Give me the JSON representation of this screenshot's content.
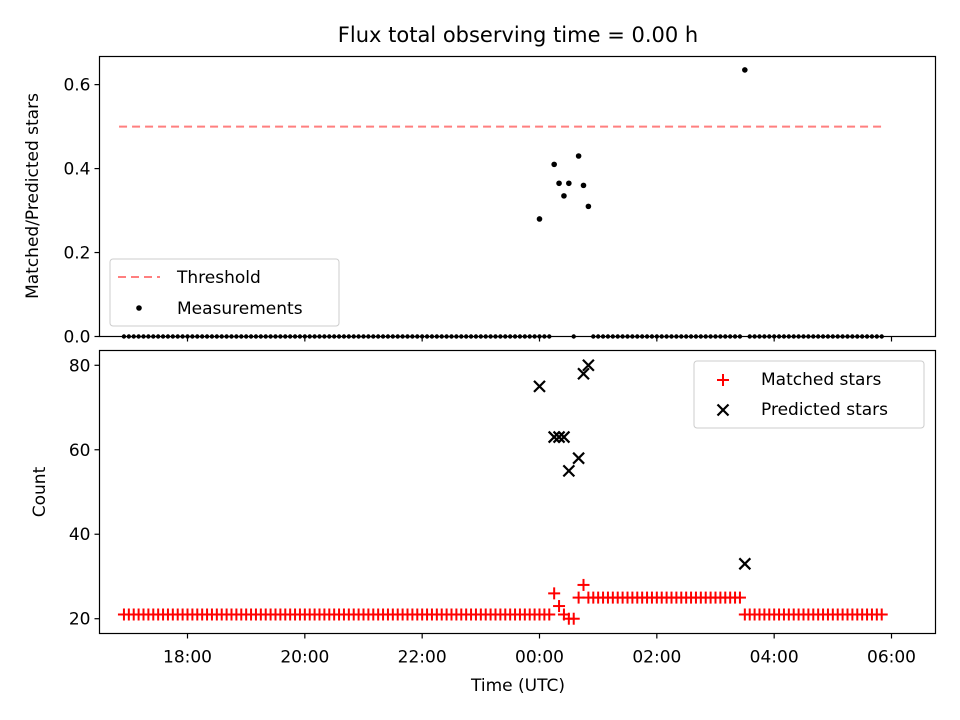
{
  "title": "Flux total observing time = 0.00 h",
  "chart_data": [
    {
      "type": "scatter",
      "title": "Flux total observing time = 0.00 h",
      "xlabel": "",
      "ylabel": "Matched/Predicted stars",
      "xlim": [
        "16:30",
        "06:45"
      ],
      "ylim": [
        0,
        0.667
      ],
      "y_ticks": [
        "0.0",
        "0.2",
        "0.4",
        "0.6"
      ],
      "legend": {
        "position": "lower-left",
        "entries": [
          "Threshold",
          "Measurements"
        ]
      },
      "threshold": {
        "name": "Threshold",
        "value": 0.5,
        "x_range": [
          "16:50",
          "05:50"
        ],
        "color": "#ff7f7f",
        "style": "dashed"
      },
      "series": [
        {
          "name": "Measurements",
          "color": "#000000",
          "points": [
            {
              "x": "00:00",
              "y": 0.28
            },
            {
              "x": "00:15",
              "y": 0.41
            },
            {
              "x": "00:20",
              "y": 0.365
            },
            {
              "x": "00:25",
              "y": 0.335
            },
            {
              "x": "00:30",
              "y": 0.365
            },
            {
              "x": "00:40",
              "y": 0.43
            },
            {
              "x": "00:45",
              "y": 0.36
            },
            {
              "x": "00:50",
              "y": 0.31
            },
            {
              "x": "03:30",
              "y": 0.635
            }
          ],
          "zero_runs": [
            {
              "from": "16:55",
              "to": "00:10",
              "step_min": 5
            },
            {
              "from": "00:35",
              "to": "00:35",
              "step_min": 5
            },
            {
              "from": "00:55",
              "to": "03:25",
              "step_min": 5
            },
            {
              "from": "03:35",
              "to": "05:50",
              "step_min": 5
            }
          ]
        }
      ]
    },
    {
      "type": "scatter",
      "xlabel": "Time (UTC)",
      "ylabel": "Count",
      "xlim": [
        "16:30",
        "06:45"
      ],
      "ylim": [
        16.5,
        83.5
      ],
      "y_ticks": [
        "20",
        "40",
        "60",
        "80"
      ],
      "x_ticks": [
        "18:00",
        "20:00",
        "22:00",
        "00:00",
        "02:00",
        "04:00",
        "06:00"
      ],
      "legend": {
        "position": "upper-right",
        "entries": [
          "Matched stars",
          "Predicted stars"
        ]
      },
      "series": [
        {
          "name": "Matched stars",
          "color": "#ff0000",
          "marker": "plus",
          "runs": [
            {
              "from": "16:55",
              "to": "00:10",
              "step_min": 5,
              "value": 21
            },
            {
              "from": "00:55",
              "to": "03:25",
              "step_min": 5,
              "value": 25
            },
            {
              "from": "03:35",
              "to": "05:50",
              "step_min": 5,
              "value": 21
            }
          ],
          "points": [
            {
              "x": "00:15",
              "y": 26
            },
            {
              "x": "00:20",
              "y": 23
            },
            {
              "x": "00:25",
              "y": 21
            },
            {
              "x": "00:30",
              "y": 20
            },
            {
              "x": "00:35",
              "y": 20
            },
            {
              "x": "00:40",
              "y": 25
            },
            {
              "x": "00:45",
              "y": 28
            },
            {
              "x": "00:50",
              "y": 25
            },
            {
              "x": "03:30",
              "y": 21
            }
          ]
        },
        {
          "name": "Predicted stars",
          "color": "#000000",
          "marker": "x",
          "points": [
            {
              "x": "00:00",
              "y": 75
            },
            {
              "x": "00:15",
              "y": 63
            },
            {
              "x": "00:20",
              "y": 63
            },
            {
              "x": "00:25",
              "y": 63
            },
            {
              "x": "00:30",
              "y": 55
            },
            {
              "x": "00:40",
              "y": 58
            },
            {
              "x": "00:45",
              "y": 78
            },
            {
              "x": "00:50",
              "y": 80
            },
            {
              "x": "03:30",
              "y": 33
            }
          ]
        }
      ]
    }
  ]
}
